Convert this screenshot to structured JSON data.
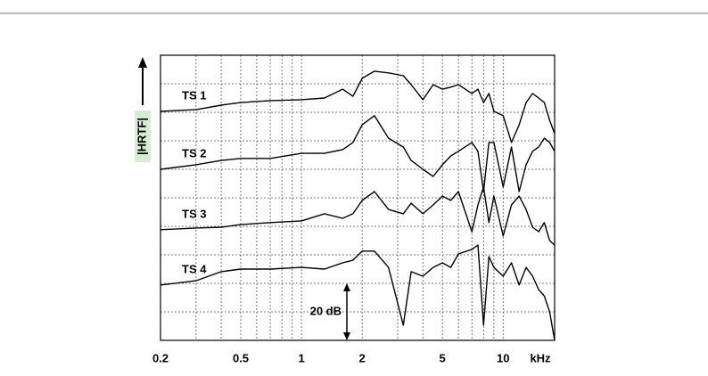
{
  "chart_data": {
    "type": "line",
    "y_label": "|HRTF|",
    "x_unit_label": "kHz",
    "log_x": true,
    "grid": true,
    "xlim": [
      0.2,
      18
    ],
    "xticks": [
      0.2,
      0.5,
      1,
      2,
      5,
      10
    ],
    "minor_xticks": [
      0.3,
      0.4,
      0.6,
      0.7,
      0.8,
      0.9,
      3,
      4,
      6,
      7,
      8,
      9
    ],
    "ylim": [
      0,
      100
    ],
    "yticks": [
      0,
      10,
      20,
      30,
      40,
      50,
      60,
      70,
      80,
      90,
      100
    ],
    "scale_bar": {
      "value": 20,
      "label": "20 dB"
    },
    "x": [
      0.2,
      0.3,
      0.4,
      0.5,
      0.7,
      1,
      1.3,
      1.6,
      1.8,
      2,
      2.3,
      2.7,
      3.2,
      3.5,
      4,
      4.5,
      5,
      5.5,
      6,
      7,
      7.5,
      8,
      8.5,
      9,
      10,
      11,
      12,
      13,
      14,
      15,
      16,
      17,
      18
    ],
    "series": [
      {
        "name": "TS 1",
        "color": "#000000",
        "values": [
          80.3,
          80.9,
          82.5,
          83.4,
          84.1,
          84.4,
          85.0,
          88.1,
          85.6,
          91.9,
          94.4,
          93.8,
          92.8,
          89.7,
          84.4,
          89.7,
          88.1,
          88.8,
          89.7,
          86.6,
          88.1,
          83.4,
          86.6,
          80.3,
          78.8,
          69.4,
          75.6,
          83.4,
          86.6,
          85.0,
          83.4,
          77.2,
          72.5
        ]
      },
      {
        "name": "TS 2",
        "color": "#000000",
        "values": [
          60.0,
          61.6,
          63.1,
          63.8,
          63.8,
          65.6,
          65.6,
          66.9,
          69.4,
          75.6,
          78.8,
          70.9,
          67.8,
          63.1,
          60.0,
          57.5,
          61.6,
          64.7,
          66.3,
          69.4,
          66.3,
          52.2,
          69.4,
          69.4,
          53.8,
          67.8,
          52.2,
          61.6,
          66.3,
          67.8,
          70.9,
          69.4,
          66.3
        ]
      },
      {
        "name": "TS 3",
        "color": "#000000",
        "values": [
          38.8,
          39.4,
          39.7,
          40.6,
          41.3,
          41.9,
          44.4,
          42.8,
          44.4,
          49.1,
          52.2,
          45.9,
          44.4,
          48.1,
          44.4,
          47.5,
          50.6,
          49.1,
          52.2,
          38.1,
          47.5,
          53.8,
          41.3,
          50.6,
          36.6,
          47.5,
          50.6,
          45.9,
          39.7,
          38.1,
          41.3,
          35.0,
          33.4
        ]
      },
      {
        "name": "TS 4",
        "color": "#000000",
        "values": [
          19.4,
          20.9,
          24.1,
          25.0,
          25.0,
          25.6,
          25.0,
          27.2,
          28.1,
          31.3,
          31.3,
          25.6,
          5.3,
          24.1,
          22.5,
          25.6,
          27.2,
          25.6,
          30.3,
          31.9,
          33.4,
          5.3,
          29.4,
          25.6,
          22.5,
          27.2,
          19.4,
          25.6,
          22.5,
          17.8,
          15.6,
          10.0,
          0
        ]
      }
    ]
  }
}
